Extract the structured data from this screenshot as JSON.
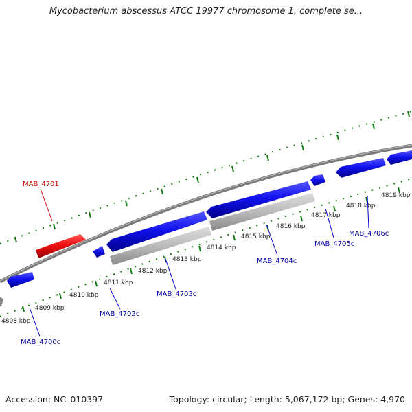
{
  "title": "Mycobacterium abscessus ATCC 19977 chromosome 1, complete se...",
  "footer": {
    "accession": "Accession: NC_010397",
    "summary": "Topology: circular; Length: 5,067,172 bp; Genes: 4,970"
  },
  "ticks": [
    "4808 kbp",
    "4809 kbp",
    "4810 kbp",
    "4811 kbp",
    "4812 kbp",
    "4813 kbp",
    "4814 kbp",
    "4815 kbp",
    "4816 kbp",
    "4817 kbp",
    "4818 kbp",
    "4819 kbp"
  ],
  "genes": [
    {
      "name": "MAB_4700c",
      "color": "#0000cc"
    },
    {
      "name": "MAB_4701",
      "color": "#cc0000"
    },
    {
      "name": "MAB_4702c",
      "color": "#0000cc"
    },
    {
      "name": "MAB_4703c",
      "color": "#0000cc"
    },
    {
      "name": "MAB_4704c",
      "color": "#0000cc"
    },
    {
      "name": "MAB_4705c",
      "color": "#0000cc"
    },
    {
      "name": "MAB_4706c",
      "color": "#0000cc"
    }
  ],
  "colors": {
    "backbone": "#777777",
    "reverse_gene": "#1010dd",
    "forward_gene": "#dd1111",
    "pseudo_gene": "#bbbbbb",
    "tick_marks": "#117711"
  }
}
